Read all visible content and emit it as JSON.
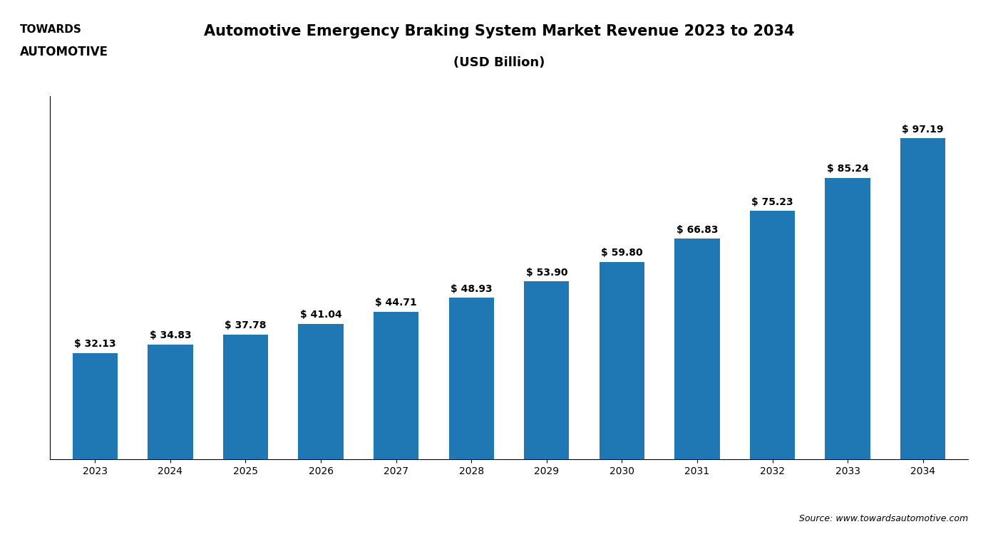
{
  "chart_data": {
    "type": "bar",
    "title": "Automotive Emergency Braking System Market Revenue 2023 to 2034",
    "subtitle": "(USD Billion)",
    "categories": [
      "2023",
      "2024",
      "2025",
      "2026",
      "2027",
      "2028",
      "2029",
      "2030",
      "2031",
      "2032",
      "2033",
      "2034"
    ],
    "values": [
      32.13,
      34.83,
      37.78,
      41.04,
      44.71,
      48.93,
      53.9,
      59.8,
      66.83,
      75.23,
      85.24,
      97.19
    ],
    "value_labels": [
      "$ 32.13",
      "$ 34.83",
      "$ 37.78",
      "$ 41.04",
      "$ 44.71",
      "$ 48.93",
      "$ 53.90",
      "$ 59.80",
      "$ 66.83",
      "$ 75.23",
      "$ 85.24",
      "$ 97.19"
    ],
    "data_labels": true,
    "ylim": [
      0,
      110
    ],
    "yticks": [],
    "grid": false,
    "tick_labels": "x",
    "annotations": [
      "TOWARDS",
      "AUTOMOTIVE",
      "Source: www.towardsautomotive.com"
    ]
  }
}
